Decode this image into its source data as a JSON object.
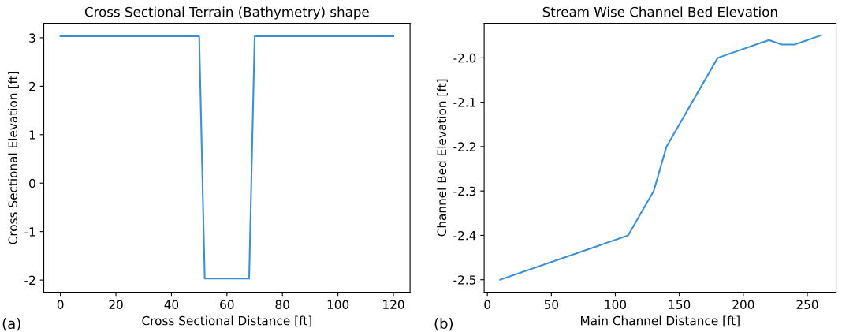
{
  "chart_data": [
    {
      "type": "line",
      "title": "Cross Sectional Terrain (Bathymetry) shape",
      "xlabel": "Cross Sectional Distance [ft]",
      "ylabel": "Cross Sectional Elevation [ft]",
      "x": [
        0,
        50,
        52,
        68,
        70,
        120
      ],
      "series": [
        {
          "color": "#3b8fd4",
          "values": [
            3.03,
            3.03,
            -1.97,
            -1.97,
            3.03,
            3.03
          ]
        }
      ],
      "xlim": [
        -6,
        126
      ],
      "ylim": [
        -2.25,
        3.3
      ],
      "xticks": [
        0,
        20,
        40,
        60,
        80,
        100,
        120
      ],
      "yticks": [
        -2,
        -1,
        0,
        1,
        2,
        3
      ],
      "annotations": [
        "(a)"
      ]
    },
    {
      "type": "line",
      "title": "Stream Wise Channel Bed Elevation",
      "xlabel": "Main Channel Distance [ft]",
      "ylabel": "Channel Bed Elevation [ft]",
      "x": [
        10,
        110,
        130,
        140,
        180,
        220,
        230,
        240,
        260
      ],
      "series": [
        {
          "color": "#3b8fd4",
          "values": [
            -2.5,
            -2.4,
            -2.3,
            -2.2,
            -2.0,
            -1.96,
            -1.97,
            -1.97,
            -1.95
          ]
        }
      ],
      "xlim": [
        -2.5,
        272.5
      ],
      "ylim": [
        -2.528,
        -1.922
      ],
      "xticks": [
        0,
        50,
        100,
        150,
        200,
        250
      ],
      "yticks": [
        -2.5,
        -2.4,
        -2.3,
        -2.2,
        -2.1,
        {
          "value": -2,
          "label": "-2.0"
        }
      ],
      "annotations": [
        "(b)"
      ]
    }
  ]
}
